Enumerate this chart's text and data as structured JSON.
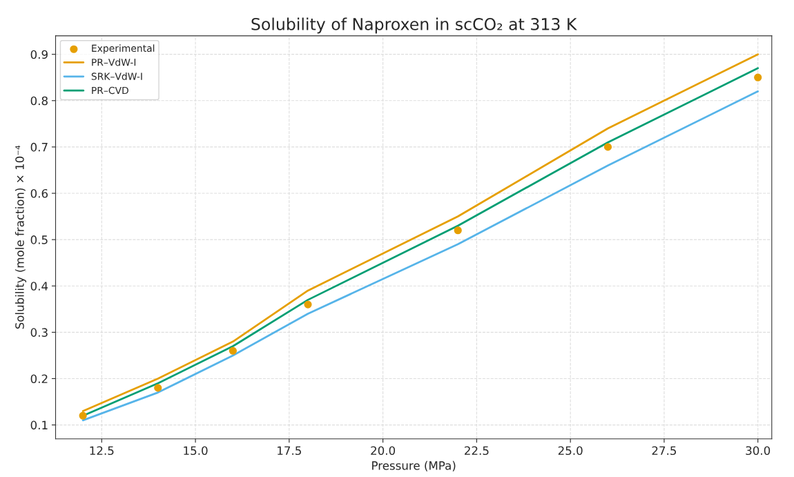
{
  "chart_data": {
    "type": "line",
    "title": "Solubility of Naproxen in scCO₂ at 313 K",
    "xlabel": "Pressure (MPa)",
    "ylabel": "Solubility (mole fraction) × 10⁻⁴",
    "x": [
      12,
      14,
      16,
      18,
      22,
      26,
      30
    ],
    "series": [
      {
        "name": "Experimental",
        "type": "scatter",
        "marker": "circle",
        "color": "#e69f00",
        "values": [
          0.12,
          0.18,
          0.26,
          0.36,
          0.52,
          0.7,
          0.85
        ]
      },
      {
        "name": "PR–VdW-I",
        "color": "#e69f00",
        "values": [
          0.13,
          0.2,
          0.28,
          0.39,
          0.55,
          0.74,
          0.9
        ]
      },
      {
        "name": "SRK–VdW-I",
        "color": "#56b4e9",
        "values": [
          0.11,
          0.17,
          0.25,
          0.34,
          0.49,
          0.66,
          0.82
        ]
      },
      {
        "name": "PR–CVD",
        "color": "#009e73",
        "values": [
          0.12,
          0.19,
          0.27,
          0.37,
          0.53,
          0.71,
          0.87
        ]
      }
    ],
    "xlim": [
      11.27,
      30.37
    ],
    "ylim": [
      0.07,
      0.94
    ],
    "xticks": [
      12.5,
      {
        "value": 15,
        "label": "15.0"
      },
      17.5,
      {
        "value": 20,
        "label": "20.0"
      },
      22.5,
      {
        "value": 25,
        "label": "25.0"
      },
      27.5,
      {
        "value": 30,
        "label": "30.0"
      }
    ],
    "yticks": [
      0.1,
      0.2,
      0.3,
      0.4,
      0.5,
      0.6,
      0.7,
      0.8,
      0.9
    ],
    "grid": true,
    "legend": "top left",
    "line_style": "solid"
  }
}
